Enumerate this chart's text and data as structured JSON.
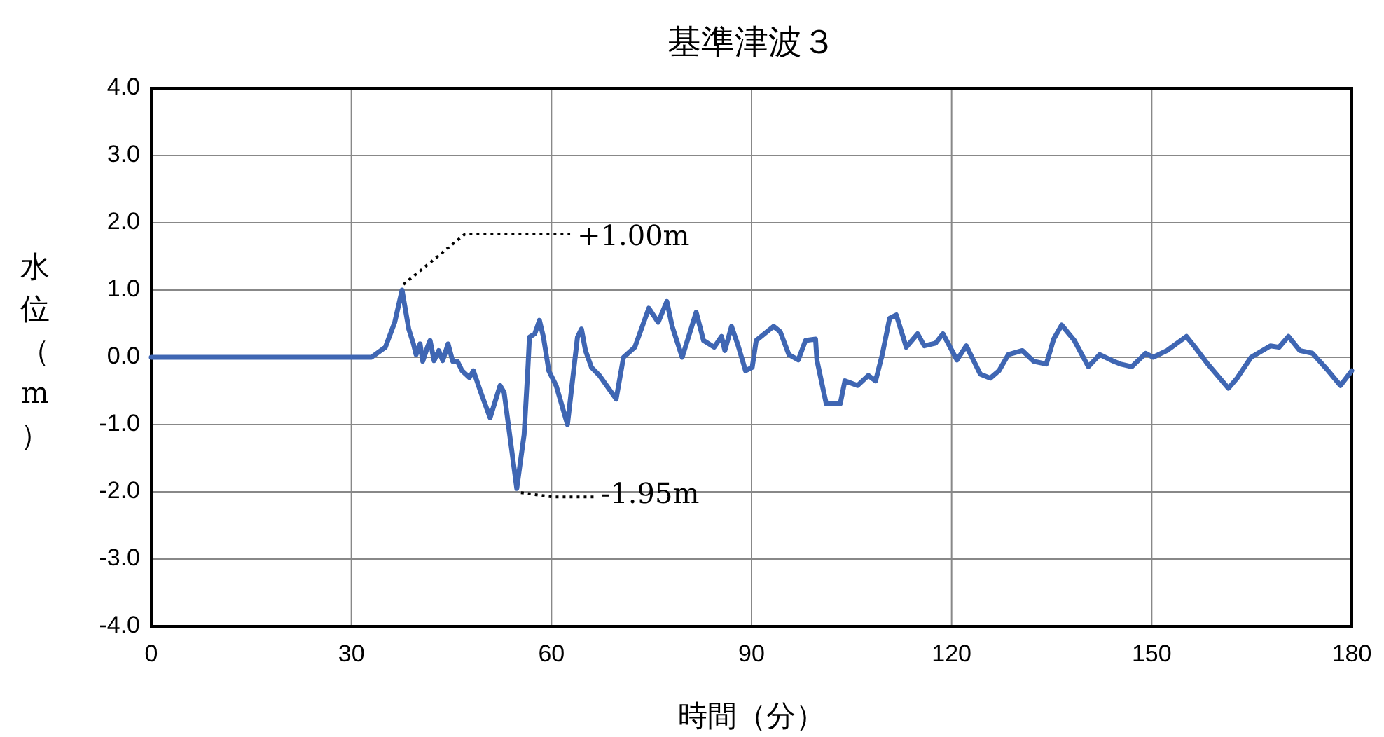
{
  "chart_data": {
    "type": "line",
    "title": "基準津波３",
    "xlabel": "時間（分）",
    "ylabel": "水位（m）",
    "xlim": [
      0,
      180
    ],
    "xticks": [
      0,
      30,
      60,
      90,
      120,
      150,
      180
    ],
    "ylim": [
      -4,
      4
    ],
    "yticks": [
      {
        "value": -4,
        "label": "-4.0"
      },
      {
        "value": -3,
        "label": "-3.0"
      },
      {
        "value": -2,
        "label": "-2.0"
      },
      {
        "value": -1,
        "label": "-1.0"
      },
      {
        "value": 0,
        "label": "0.0"
      },
      {
        "value": 1,
        "label": "1.0"
      },
      {
        "value": 2,
        "label": "2.0"
      },
      {
        "value": 3,
        "label": "3.0"
      },
      {
        "value": 4,
        "label": "4.0"
      }
    ],
    "grid": true,
    "marker": "none",
    "line_style": "solid",
    "annotations": [
      {
        "text": "+1.00m",
        "x": 37.6,
        "y": 1.0
      },
      {
        "text": "-1.95m",
        "x": 54.8,
        "y": -1.95
      }
    ],
    "series": [
      {
        "color": "#3f66b3",
        "x": [
          0,
          33,
          35.1,
          36.5,
          37.6,
          38.6,
          39.3,
          39.7,
          40.3,
          40.7,
          41.4,
          41.8,
          42.4,
          43.1,
          43.7,
          44.5,
          45.2,
          45.9,
          46.6,
          47.7,
          48.3,
          49.4,
          50.8,
          52.3,
          52.9,
          54.0,
          54.8,
          55.9,
          56.5,
          56.7,
          57.5,
          58.2,
          58.8,
          59.6,
          60.7,
          62.4,
          63.9,
          64.5,
          65.1,
          66.0,
          67.2,
          69.7,
          70.8,
          72.5,
          74.6,
          76.0,
          77.3,
          78.1,
          79.6,
          81.7,
          82.8,
          84.4,
          85.5,
          86.0,
          87.0,
          88.0,
          89.1,
          90.1,
          90.7,
          93.3,
          94.3,
          95.6,
          97.0,
          98.1,
          99.6,
          99.8,
          101.2,
          103.3,
          104.0,
          105.9,
          107.5,
          108.6,
          109.6,
          110.7,
          111.7,
          113.2,
          114.9,
          115.9,
          117.6,
          118.7,
          120.8,
          122.2,
          124.3,
          125.8,
          127.1,
          128.5,
          130.6,
          132.3,
          134.2,
          135.3,
          136.5,
          138.4,
          140.5,
          142.2,
          144.3,
          145.3,
          147.0,
          149.1,
          150.2,
          152.3,
          155.2,
          156.5,
          158.4,
          161.5,
          162.8,
          164.9,
          167.8,
          169.1,
          170.5,
          172.2,
          174.1,
          176.2,
          178.3,
          180
        ],
        "values": [
          0,
          0,
          0.15,
          0.52,
          1.0,
          0.42,
          0.2,
          0.04,
          0.2,
          -0.06,
          0.15,
          0.25,
          -0.05,
          0.1,
          -0.05,
          0.2,
          -0.06,
          -0.06,
          -0.2,
          -0.3,
          -0.2,
          -0.52,
          -0.9,
          -0.42,
          -0.52,
          -1.35,
          -1.95,
          -1.15,
          -0.1,
          0.3,
          0.35,
          0.55,
          0.3,
          -0.2,
          -0.42,
          -1.0,
          0.3,
          0.42,
          0.1,
          -0.15,
          -0.27,
          -0.62,
          0,
          0.15,
          0.73,
          0.52,
          0.83,
          0.46,
          0,
          0.67,
          0.25,
          0.15,
          0.31,
          0.1,
          0.46,
          0.17,
          -0.2,
          -0.15,
          0.25,
          0.46,
          0.38,
          0.04,
          -0.04,
          0.25,
          0.27,
          -0.04,
          -0.69,
          -0.69,
          -0.35,
          -0.42,
          -0.27,
          -0.35,
          0.04,
          0.58,
          0.63,
          0.15,
          0.35,
          0.17,
          0.21,
          0.35,
          -0.04,
          0.17,
          -0.25,
          -0.31,
          -0.2,
          0.04,
          0.1,
          -0.06,
          -0.1,
          0.27,
          0.48,
          0.25,
          -0.14,
          0.04,
          -0.06,
          -0.1,
          -0.14,
          0.06,
          0,
          0.1,
          0.31,
          0.15,
          -0.1,
          -0.46,
          -0.31,
          0,
          0.17,
          0.15,
          0.31,
          0.1,
          0.06,
          -0.17,
          -0.42,
          -0.2
        ]
      }
    ]
  }
}
